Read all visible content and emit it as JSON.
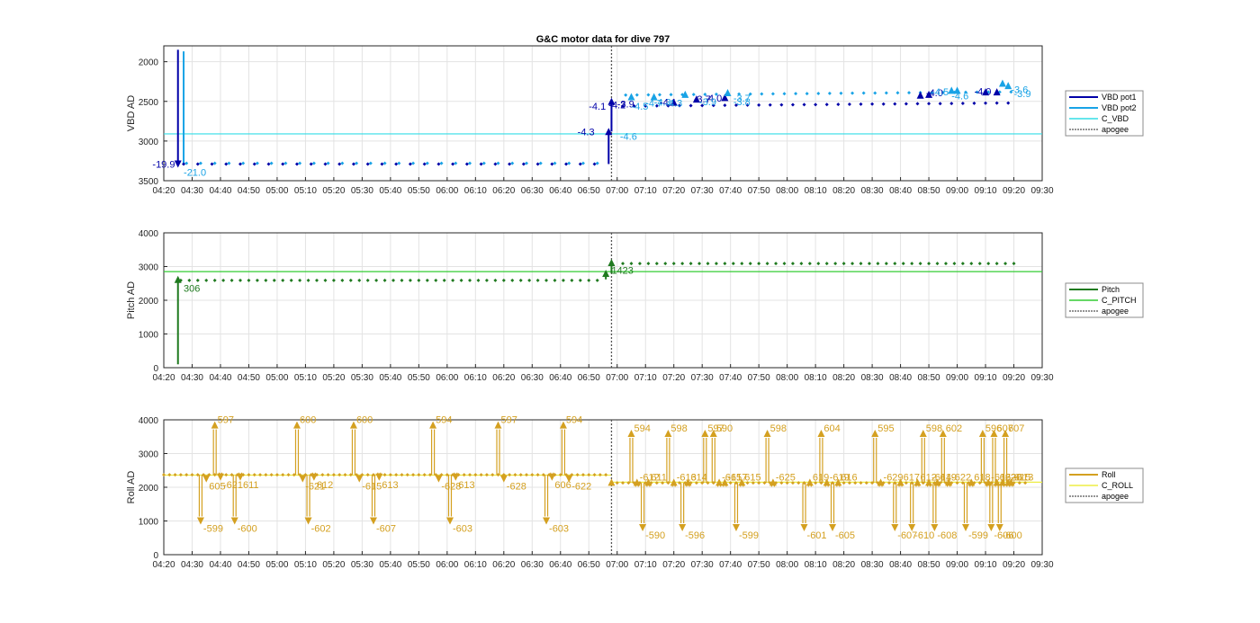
{
  "figure_title": "G&C motor data for dive 797",
  "colors": {
    "vbd_pot1": "#0000a8",
    "vbd_pot2": "#19a3e6",
    "c_vbd": "#33dde6",
    "pitch": "#1f7a1f",
    "c_pitch": "#33cc33",
    "roll": "#d4a020",
    "c_roll": "#eeee44",
    "apogee": "#555555",
    "grid": "#e3e3e3",
    "axis": "#262626"
  },
  "chart_data": [
    {
      "type": "line",
      "title": "G&C motor data for dive 797",
      "ylabel": "VBD AD",
      "y_reversed": true,
      "ylim": [
        1800,
        3500
      ],
      "yticks": [
        "2000",
        "2500",
        "3000",
        "3500"
      ],
      "x_time_range": [
        "04:20",
        "09:30"
      ],
      "xticks": [
        "04:20",
        "04:30",
        "04:40",
        "04:50",
        "05:00",
        "05:10",
        "05:20",
        "05:30",
        "05:40",
        "05:50",
        "06:00",
        "06:10",
        "06:20",
        "06:30",
        "06:40",
        "06:50",
        "07:00",
        "07:10",
        "07:20",
        "07:30",
        "07:40",
        "07:50",
        "08:00",
        "08:10",
        "08:20",
        "08:30",
        "08:40",
        "08:50",
        "09:00",
        "09:10",
        "09:20",
        "09:30"
      ],
      "grid": true,
      "legend": {
        "placement": "outside-right",
        "entries": [
          "VBD pot1",
          "VBD pot2",
          "C_VBD",
          "apogee"
        ]
      },
      "apogee_time": "06:58",
      "c_vbd": 2910,
      "pumps": [
        {
          "time": "04:25",
          "from": 1850,
          "to": 3290,
          "series": "pot1"
        },
        {
          "time": "06:57",
          "from": 3290,
          "to": 2880,
          "series": "pot1"
        },
        {
          "time": "06:58",
          "from": 2880,
          "to": 2500,
          "series": "pot1"
        }
      ],
      "spike_pot2": {
        "time": "04:27",
        "from": 1870,
        "to": 3290
      },
      "pot1_points": {
        "start": "04:27",
        "end": "06:55",
        "y": 3290,
        "step_min": 5
      },
      "pot2_points": {
        "start": "04:28",
        "end": "06:56",
        "y": 3280,
        "step_min": 5
      },
      "pot1_points_after": {
        "start": "07:02",
        "end": "09:20",
        "y_start": 2560,
        "y_end": 2520,
        "step_min": 4
      },
      "pot2_points_after": {
        "start": "07:03",
        "end": "09:21",
        "y_start": 2420,
        "y_end": 2380,
        "step_min": 4
      },
      "triangles": [
        {
          "time": "07:05",
          "y": 2440,
          "series": "pot2"
        },
        {
          "time": "07:13",
          "y": 2440,
          "series": "pot2"
        },
        {
          "time": "07:20",
          "y": 2510,
          "series": "pot1"
        },
        {
          "time": "07:24",
          "y": 2410,
          "series": "pot2"
        },
        {
          "time": "07:28",
          "y": 2470,
          "series": "pot1"
        },
        {
          "time": "07:38",
          "y": 2450,
          "series": "pot1"
        },
        {
          "time": "07:39",
          "y": 2390,
          "series": "pot2"
        },
        {
          "time": "08:47",
          "y": 2420,
          "series": "pot1"
        },
        {
          "time": "08:50",
          "y": 2410,
          "series": "pot1"
        },
        {
          "time": "08:58",
          "y": 2360,
          "series": "pot2"
        },
        {
          "time": "09:00",
          "y": 2360,
          "series": "pot2"
        },
        {
          "time": "09:10",
          "y": 2380,
          "series": "pot1"
        },
        {
          "time": "09:14",
          "y": 2380,
          "series": "pot1"
        },
        {
          "time": "09:16",
          "y": 2270,
          "series": "pot2"
        },
        {
          "time": "09:18",
          "y": 2300,
          "series": "pot2"
        }
      ],
      "labels": [
        {
          "text": "-19.9",
          "time": "04:16",
          "y": 3290,
          "series": "pot1"
        },
        {
          "text": "-21.0",
          "time": "04:27",
          "y": 3395,
          "series": "pot2"
        },
        {
          "text": "-4.3",
          "time": "06:46",
          "y": 2880,
          "series": "pot1"
        },
        {
          "text": "-4.6",
          "time": "07:01",
          "y": 2940,
          "series": "pot2"
        },
        {
          "text": "-4.1",
          "time": "06:50",
          "y": 2560,
          "series": "pot1"
        },
        {
          "text": "-4.2",
          "time": "06:57",
          "y": 2540,
          "series": "pot1"
        },
        {
          "text": "-3.9",
          "time": "07:00",
          "y": 2530,
          "series": "pot1"
        },
        {
          "text": "-4.5",
          "time": "07:05",
          "y": 2560,
          "series": "pot2"
        },
        {
          "text": "-4.7",
          "time": "07:10",
          "y": 2520,
          "series": "pot2"
        },
        {
          "text": "-4.3",
          "time": "07:13",
          "y": 2510,
          "series": "pot2"
        },
        {
          "text": "-4.1",
          "time": "07:15",
          "y": 2510,
          "series": "pot1"
        },
        {
          "text": "-4.3",
          "time": "07:17",
          "y": 2520,
          "series": "pot2"
        },
        {
          "text": "-3.7",
          "time": "07:27",
          "y": 2470,
          "series": "pot1"
        },
        {
          "text": "-4.0",
          "time": "07:31",
          "y": 2460,
          "series": "pot1"
        },
        {
          "text": "-3.9",
          "time": "07:29",
          "y": 2500,
          "series": "pot2"
        },
        {
          "text": "-3.7",
          "time": "07:41",
          "y": 2460,
          "series": "pot2"
        },
        {
          "text": "-3.8",
          "time": "07:41",
          "y": 2500,
          "series": "pot2"
        },
        {
          "text": "-4.0",
          "time": "08:49",
          "y": 2390,
          "series": "pot1"
        },
        {
          "text": "-4.5",
          "time": "08:51",
          "y": 2380,
          "series": "pot2"
        },
        {
          "text": "-4.6",
          "time": "08:58",
          "y": 2430,
          "series": "pot2"
        },
        {
          "text": "-4.0",
          "time": "09:06",
          "y": 2370,
          "series": "pot1"
        },
        {
          "text": "-3.6",
          "time": "09:19",
          "y": 2350,
          "series": "pot2"
        },
        {
          "text": "-3.9",
          "time": "09:20",
          "y": 2400,
          "series": "pot2"
        }
      ]
    },
    {
      "type": "line",
      "title": "",
      "ylabel": "Pitch AD",
      "ylim": [
        0,
        4000
      ],
      "yticks": [
        "0",
        "1000",
        "2000",
        "3000",
        "4000"
      ],
      "x_time_range": [
        "04:20",
        "09:30"
      ],
      "xticks": [
        "04:20",
        "04:30",
        "04:40",
        "04:50",
        "05:00",
        "05:10",
        "05:20",
        "05:30",
        "05:40",
        "05:50",
        "06:00",
        "06:10",
        "06:20",
        "06:30",
        "06:40",
        "06:50",
        "07:00",
        "07:10",
        "07:20",
        "07:30",
        "07:40",
        "07:50",
        "08:00",
        "08:10",
        "08:20",
        "08:30",
        "08:40",
        "08:50",
        "09:00",
        "09:10",
        "09:20",
        "09:30"
      ],
      "grid": true,
      "legend": {
        "placement": "outside-right",
        "entries": [
          "Pitch",
          "C_PITCH",
          "apogee"
        ]
      },
      "apogee_time": "06:58",
      "c_pitch": 2850,
      "moves": [
        {
          "time": "04:25",
          "from": 100,
          "to": 2620
        },
        {
          "time": "06:56",
          "from": 2620,
          "to": 2800
        },
        {
          "time": "06:58",
          "from": 2800,
          "to": 3120
        }
      ],
      "points_before": {
        "start": "04:26",
        "end": "06:55",
        "y": 2590,
        "step_min": 3
      },
      "points_after": {
        "start": "07:02",
        "end": "09:20",
        "y": 3090,
        "step_min": 3
      },
      "labels": [
        {
          "text": "306",
          "time": "04:27",
          "y": 2360
        },
        {
          "text": "1423",
          "time": "06:58",
          "y": 2890
        }
      ]
    },
    {
      "type": "line",
      "title": "",
      "ylabel": "Roll AD",
      "ylim": [
        0,
        4000
      ],
      "yticks": [
        "0",
        "1000",
        "2000",
        "3000",
        "4000"
      ],
      "x_time_range": [
        "04:20",
        "09:30"
      ],
      "xticks": [
        "04:20",
        "04:30",
        "04:40",
        "04:50",
        "05:00",
        "05:10",
        "05:20",
        "05:30",
        "05:40",
        "05:50",
        "06:00",
        "06:10",
        "06:20",
        "06:30",
        "06:40",
        "06:50",
        "07:00",
        "07:10",
        "07:20",
        "07:30",
        "07:40",
        "07:50",
        "08:00",
        "08:10",
        "08:20",
        "08:30",
        "08:40",
        "08:50",
        "09:00",
        "09:10",
        "09:20",
        "09:30"
      ],
      "grid": true,
      "legend": {
        "placement": "outside-right",
        "entries": [
          "Roll",
          "C_ROLL",
          "apogee"
        ]
      },
      "apogee_time": "06:58",
      "c_roll_before": 2360,
      "c_roll_after": 2150,
      "baseline_before": 2370,
      "baseline_after": 2130,
      "strokes": [
        {
          "time": "04:33",
          "to": 1000,
          "label": "-599",
          "up": false
        },
        {
          "time": "04:35",
          "to": 2250,
          "label": "605",
          "up": true
        },
        {
          "time": "04:38",
          "to": 3850,
          "label": "597",
          "up": true
        },
        {
          "time": "04:40",
          "to": 2300,
          "label": "-621",
          "up": false
        },
        {
          "time": "04:45",
          "to": 1000,
          "label": "-600",
          "up": false
        },
        {
          "time": "04:47",
          "to": 2300,
          "label": "611",
          "up": true
        },
        {
          "time": "05:07",
          "to": 3850,
          "label": "600",
          "up": true
        },
        {
          "time": "05:09",
          "to": 2250,
          "label": "-621",
          "up": false
        },
        {
          "time": "05:11",
          "to": 1000,
          "label": "-602",
          "up": false
        },
        {
          "time": "05:13",
          "to": 2300,
          "label": "612",
          "up": true
        },
        {
          "time": "05:27",
          "to": 3850,
          "label": "600",
          "up": true
        },
        {
          "time": "05:29",
          "to": 2250,
          "label": "-615",
          "up": false
        },
        {
          "time": "05:34",
          "to": 1000,
          "label": "-607",
          "up": false
        },
        {
          "time": "05:36",
          "to": 2300,
          "label": "613",
          "up": true
        },
        {
          "time": "05:55",
          "to": 3850,
          "label": "594",
          "up": true
        },
        {
          "time": "05:57",
          "to": 2250,
          "label": "-628",
          "up": false
        },
        {
          "time": "06:01",
          "to": 1000,
          "label": "-603",
          "up": false
        },
        {
          "time": "06:03",
          "to": 2300,
          "label": "613",
          "up": true
        },
        {
          "time": "06:18",
          "to": 3850,
          "label": "597",
          "up": true
        },
        {
          "time": "06:20",
          "to": 2250,
          "label": "-628",
          "up": false
        },
        {
          "time": "06:35",
          "to": 1000,
          "label": "-603",
          "up": false
        },
        {
          "time": "06:37",
          "to": 2300,
          "label": "606",
          "up": true
        },
        {
          "time": "06:41",
          "to": 3850,
          "label": "594",
          "up": true
        },
        {
          "time": "06:43",
          "to": 2250,
          "label": "-622",
          "up": false
        },
        {
          "time": "07:05",
          "to": 3600,
          "label": "594",
          "up": true
        },
        {
          "time": "07:07",
          "to": 2150,
          "label": "-612",
          "up": false
        },
        {
          "time": "07:09",
          "to": 800,
          "label": "-590",
          "up": false
        },
        {
          "time": "07:11",
          "to": 2150,
          "label": "611",
          "up": true
        },
        {
          "time": "07:18",
          "to": 3600,
          "label": "598",
          "up": true
        },
        {
          "time": "07:20",
          "to": 2150,
          "label": "-613",
          "up": false
        },
        {
          "time": "07:23",
          "to": 800,
          "label": "-596",
          "up": false
        },
        {
          "time": "07:25",
          "to": 2150,
          "label": "614",
          "up": true
        },
        {
          "time": "07:31",
          "to": 3600,
          "label": "597",
          "up": true
        },
        {
          "time": "07:34",
          "to": 3600,
          "label": "590",
          "up": true
        },
        {
          "time": "07:36",
          "to": 2150,
          "label": "-615",
          "up": false
        },
        {
          "time": "07:38",
          "to": 2150,
          "label": "-617",
          "up": false
        },
        {
          "time": "07:42",
          "to": 800,
          "label": "-599",
          "up": false
        },
        {
          "time": "07:44",
          "to": 2150,
          "label": "615",
          "up": true
        },
        {
          "time": "07:53",
          "to": 3600,
          "label": "598",
          "up": true
        },
        {
          "time": "07:55",
          "to": 2150,
          "label": "-625",
          "up": false
        },
        {
          "time": "08:06",
          "to": 800,
          "label": "-601",
          "up": false
        },
        {
          "time": "08:08",
          "to": 2150,
          "label": "619",
          "up": true
        },
        {
          "time": "08:12",
          "to": 3600,
          "label": "604",
          "up": true
        },
        {
          "time": "08:14",
          "to": 2150,
          "label": "-619",
          "up": false
        },
        {
          "time": "08:16",
          "to": 800,
          "label": "-605",
          "up": false
        },
        {
          "time": "08:18",
          "to": 2150,
          "label": "616",
          "up": true
        },
        {
          "time": "08:31",
          "to": 3600,
          "label": "595",
          "up": true
        },
        {
          "time": "08:33",
          "to": 2150,
          "label": "-629",
          "up": false
        },
        {
          "time": "08:38",
          "to": 800,
          "label": "-607",
          "up": false
        },
        {
          "time": "08:40",
          "to": 2150,
          "label": "617",
          "up": true
        },
        {
          "time": "08:44",
          "to": 800,
          "label": "-610",
          "up": false
        },
        {
          "time": "08:46",
          "to": 2150,
          "label": "612",
          "up": true
        },
        {
          "time": "08:48",
          "to": 3600,
          "label": "598",
          "up": true
        },
        {
          "time": "08:50",
          "to": 2150,
          "label": "-614",
          "up": false
        },
        {
          "time": "08:52",
          "to": 800,
          "label": "-608",
          "up": false
        },
        {
          "time": "08:53",
          "to": 2150,
          "label": "619",
          "up": true
        },
        {
          "time": "08:55",
          "to": 3600,
          "label": "602",
          "up": true
        },
        {
          "time": "08:57",
          "to": 2150,
          "label": "-622",
          "up": false
        },
        {
          "time": "09:03",
          "to": 800,
          "label": "-599",
          "up": false
        },
        {
          "time": "09:05",
          "to": 2150,
          "label": "618",
          "up": true
        },
        {
          "time": "09:09",
          "to": 3600,
          "label": "596",
          "up": true
        },
        {
          "time": "09:11",
          "to": 2150,
          "label": "-615",
          "up": false
        },
        {
          "time": "09:12",
          "to": 800,
          "label": "-606",
          "up": false
        },
        {
          "time": "09:13",
          "to": 3600,
          "label": "607",
          "up": true
        },
        {
          "time": "09:14",
          "to": 2150,
          "label": "622",
          "up": true
        },
        {
          "time": "09:15",
          "to": 800,
          "label": "-600",
          "up": false
        },
        {
          "time": "09:16",
          "to": 2150,
          "label": "620",
          "up": true
        },
        {
          "time": "09:17",
          "to": 3600,
          "label": "607",
          "up": true
        },
        {
          "time": "09:18",
          "to": 2150,
          "label": "-615",
          "up": false
        },
        {
          "time": "09:19",
          "to": 2150,
          "label": "-613",
          "up": false
        }
      ]
    }
  ]
}
